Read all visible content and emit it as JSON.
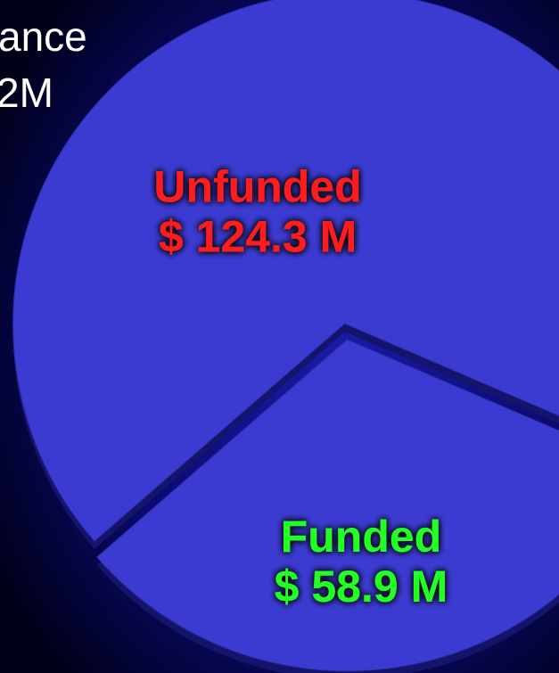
{
  "chart_data": {
    "type": "pie",
    "categories": [
      "Unfunded",
      "Funded"
    ],
    "values": [
      124.3,
      58.9
    ],
    "value_labels": [
      "$ 124.3 M",
      "$ 58.9 M"
    ],
    "colors": [
      "#3b3bd2",
      "#3b3bd2"
    ],
    "label_colors": [
      "#ff1a1a",
      "#22ff22"
    ]
  },
  "header_text": [
    "ance",
    "2M"
  ]
}
